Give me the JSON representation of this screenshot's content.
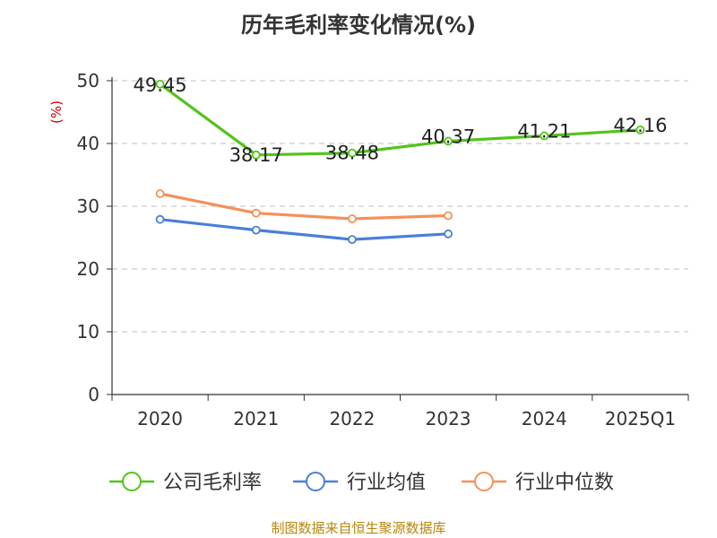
{
  "chart_data": {
    "type": "line",
    "title": "历年毛利率变化情况(%)",
    "ylabel": "(%)",
    "xlabel": "",
    "categories": [
      "2020",
      "2021",
      "2022",
      "2023",
      "2024",
      "2025Q1"
    ],
    "ylim": [
      0,
      50
    ],
    "yticks": [
      "0",
      "10",
      "20",
      "30",
      "40",
      "50"
    ],
    "grid": true,
    "legend_position": "bottom",
    "series": [
      {
        "name": "公司毛利率",
        "color": "#52c41a",
        "values": [
          49.45,
          38.17,
          38.48,
          40.37,
          41.21,
          42.16
        ],
        "labels": [
          "49.45",
          "38.17",
          "38.48",
          "40.37",
          "41.21",
          "42.16"
        ]
      },
      {
        "name": "行业均值",
        "color": "#4a7fdb",
        "values": [
          27.9,
          26.2,
          24.7,
          25.6,
          null,
          null
        ]
      },
      {
        "name": "行业中位数",
        "color": "#f5905a",
        "values": [
          32.0,
          28.9,
          28.0,
          28.5,
          null,
          null
        ]
      }
    ],
    "source": "制图数据来自恒生聚源数据库"
  }
}
